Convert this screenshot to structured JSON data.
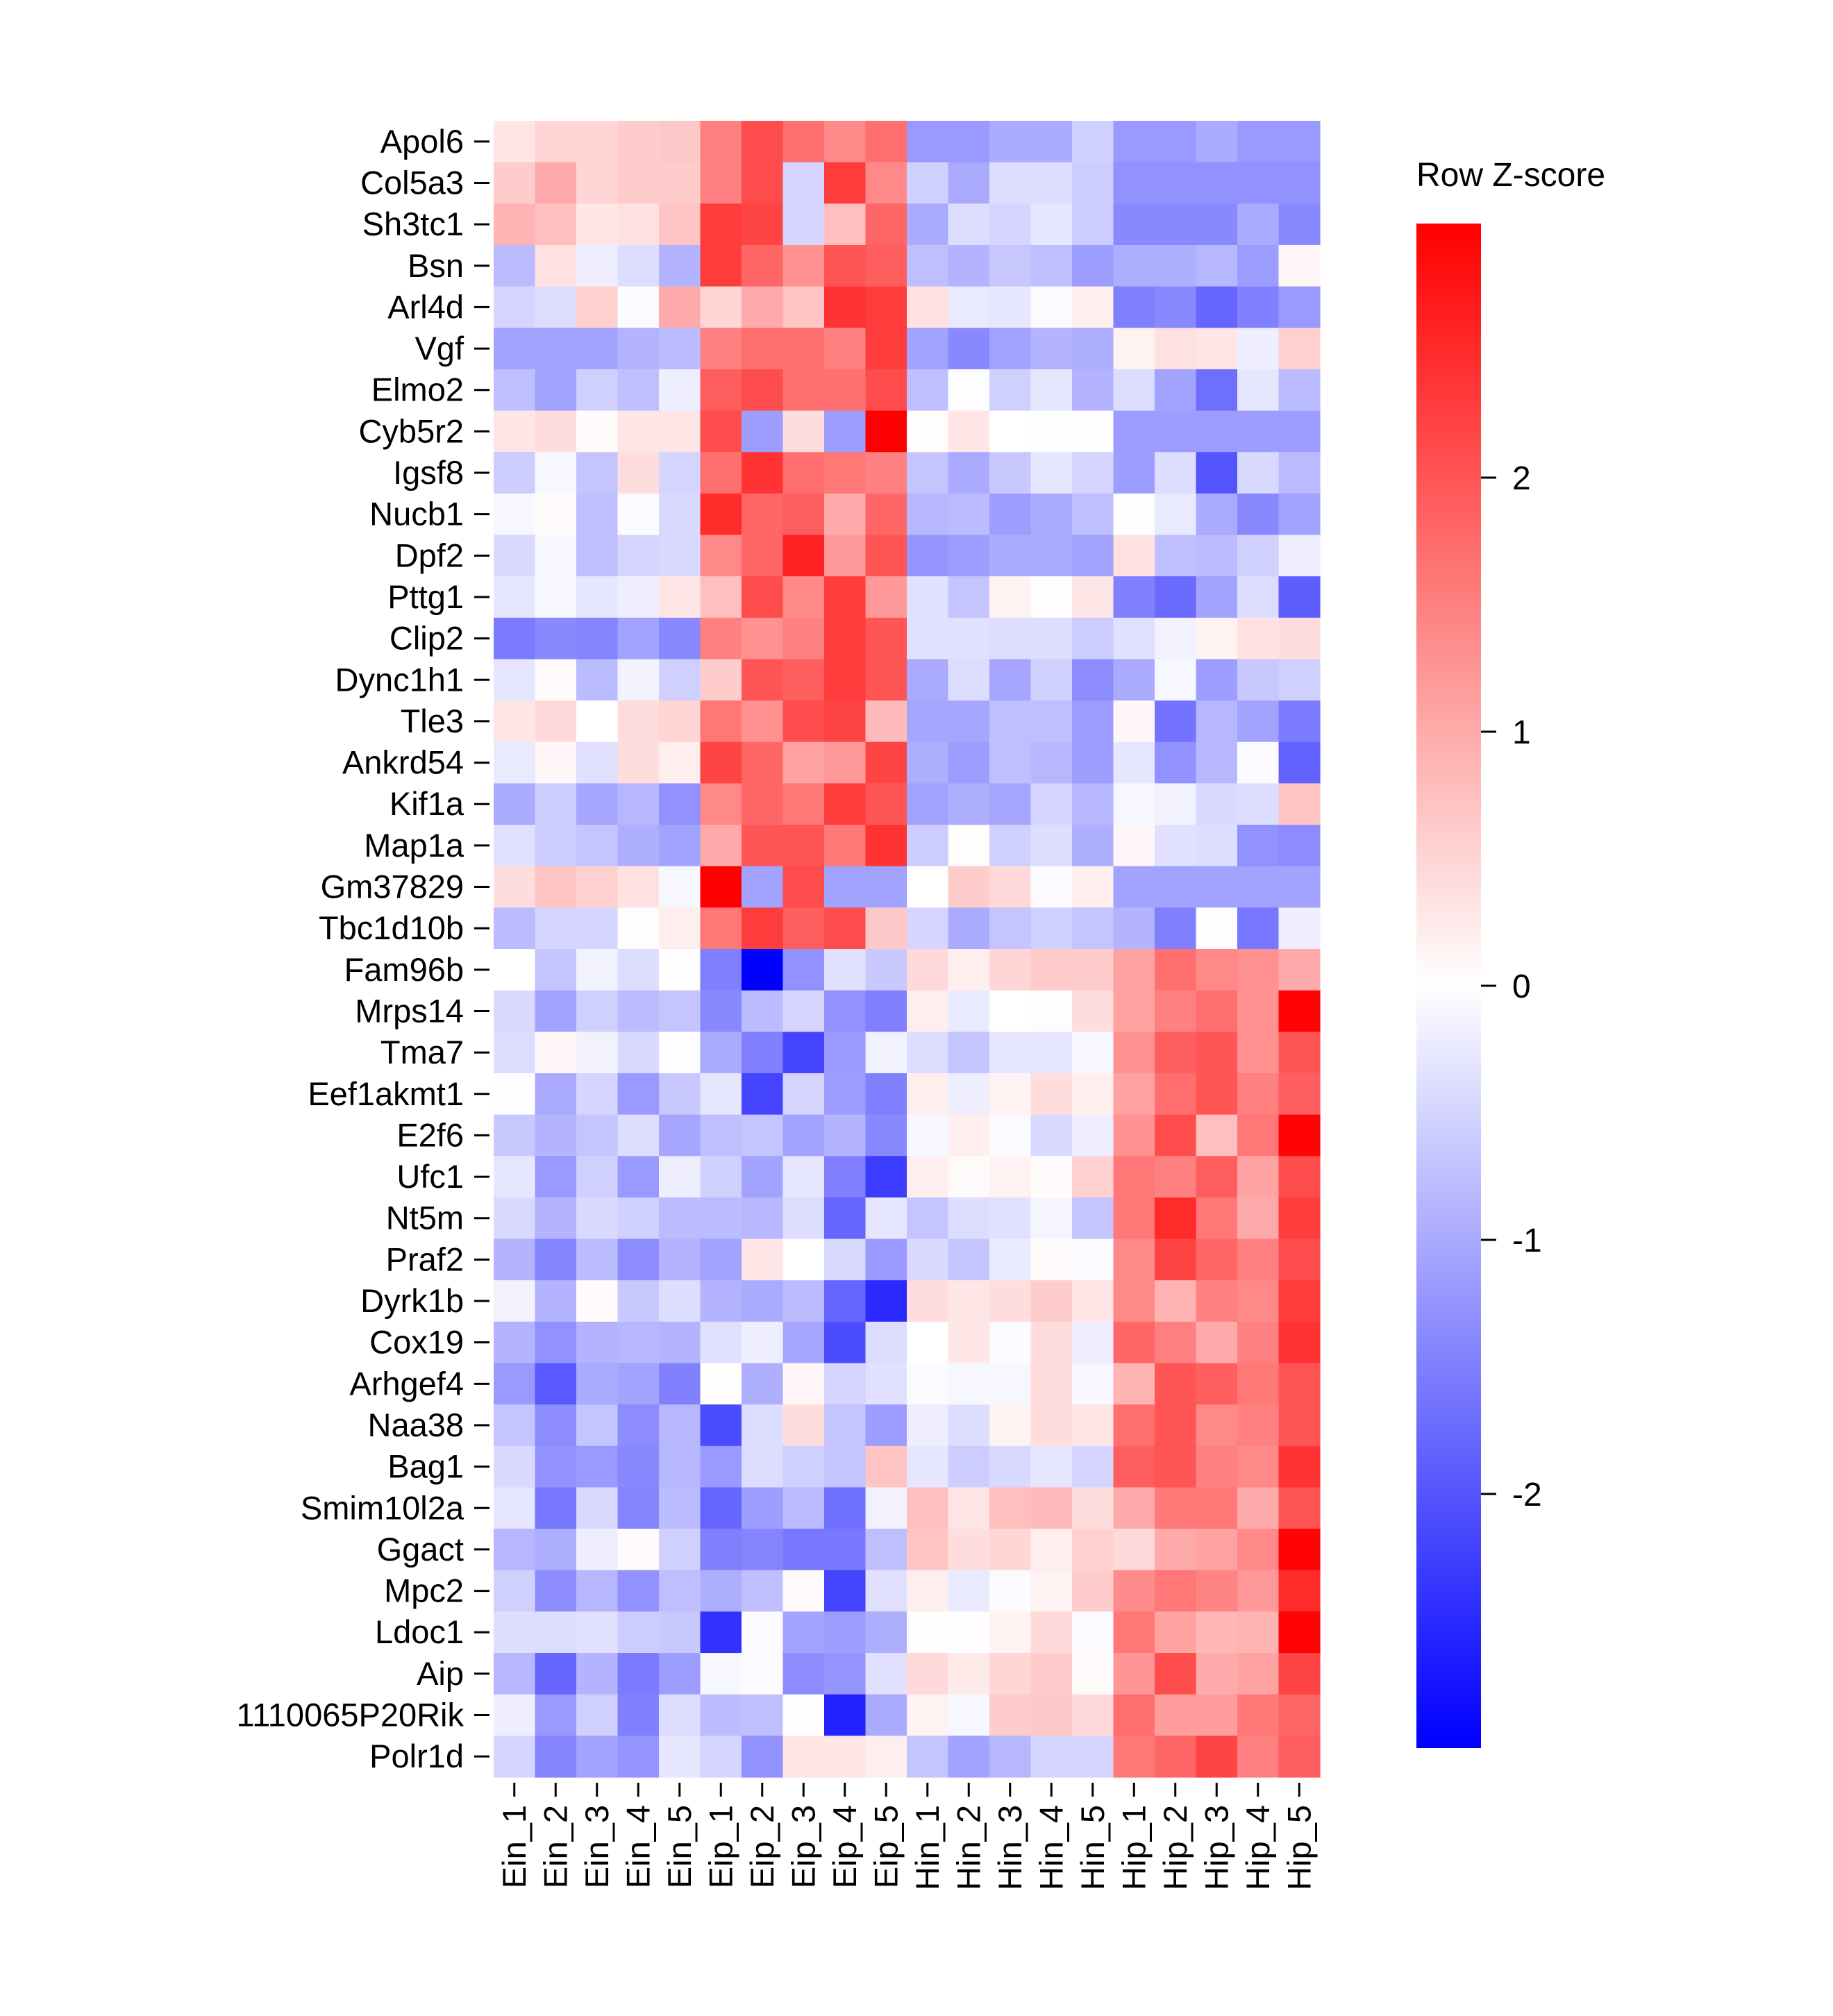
{
  "chart_data": {
    "type": "heatmap",
    "title": "",
    "xlabel": "",
    "ylabel": "",
    "colorscale": {
      "low": "#0000FF",
      "mid": "#FFFFFF",
      "high": "#FF0000",
      "range": [
        -3,
        3
      ]
    },
    "legend": {
      "title": "Row Z-score",
      "ticks": [
        2,
        1,
        0,
        -1,
        -2
      ],
      "tick_labels": [
        "2",
        "1",
        "0",
        "-1",
        "-2"
      ],
      "placement": "right"
    },
    "columns": [
      "Ein_1",
      "Ein_2",
      "Ein_3",
      "Ein_4",
      "Ein_5",
      "Eip_1",
      "Eip_2",
      "Eip_3",
      "Eip_4",
      "Eip_5",
      "Hin_1",
      "Hin_2",
      "Hin_3",
      "Hin_4",
      "Hin_5",
      "Hip_1",
      "Hip_2",
      "Hip_3",
      "Hip_4",
      "Hip_5"
    ],
    "rows": [
      "Apol6",
      "Col5a3",
      "Sh3tc1",
      "Bsn",
      "Arl4d",
      "Vgf",
      "Elmo2",
      "Cyb5r2",
      "Igsf8",
      "Nucb1",
      "Dpf2",
      "Pttg1",
      "Clip2",
      "Dync1h1",
      "Tle3",
      "Ankrd54",
      "Kif1a",
      "Map1a",
      "Gm37829",
      "Tbc1d10b",
      "Fam96b",
      "Mrps14",
      "Tma7",
      "Eef1akmt1",
      "E2f6",
      "Ufc1",
      "Nt5m",
      "Praf2",
      "Dyrk1b",
      "Cox19",
      "Arhgef4",
      "Naa38",
      "Bag1",
      "Smim10l2a",
      "Ggact",
      "Mpc2",
      "Ldoc1",
      "Aip",
      "1110065P20Rik",
      "Polr1d"
    ],
    "values": [
      [
        0.3,
        0.5,
        0.5,
        0.6,
        0.65,
        1.5,
        2.1,
        1.7,
        1.4,
        1.7,
        -1.2,
        -1.2,
        -1.0,
        -1.0,
        -0.55,
        -1.2,
        -1.2,
        -1.0,
        -1.2,
        -1.2
      ],
      [
        0.6,
        1.0,
        0.5,
        0.6,
        0.6,
        1.5,
        2.1,
        -0.5,
        2.3,
        1.4,
        -0.55,
        -1.0,
        -0.4,
        -0.4,
        -0.6,
        -1.3,
        -1.3,
        -1.3,
        -1.3,
        -1.3
      ],
      [
        0.9,
        0.75,
        0.3,
        0.35,
        0.7,
        2.3,
        2.2,
        -0.5,
        0.75,
        1.8,
        -1.0,
        -0.4,
        -0.5,
        -0.3,
        -0.6,
        -1.4,
        -1.4,
        -1.4,
        -1.0,
        -1.4
      ],
      [
        -0.8,
        0.35,
        -0.2,
        -0.4,
        -0.9,
        2.3,
        1.8,
        1.3,
        2.0,
        1.9,
        -0.75,
        -0.9,
        -0.65,
        -0.75,
        -1.15,
        -0.95,
        -0.95,
        -0.85,
        -1.15,
        0.1
      ],
      [
        -0.5,
        -0.4,
        0.55,
        -0.05,
        1.0,
        0.5,
        1.0,
        0.7,
        2.4,
        2.3,
        0.35,
        -0.25,
        -0.3,
        -0.05,
        0.2,
        -1.5,
        -1.4,
        -1.8,
        -1.5,
        -1.2
      ],
      [
        -1.1,
        -1.1,
        -1.1,
        -0.9,
        -0.8,
        1.5,
        1.7,
        1.7,
        1.5,
        2.3,
        -1.1,
        -1.4,
        -1.1,
        -0.9,
        -0.95,
        0.15,
        0.35,
        0.3,
        -0.2,
        0.55
      ],
      [
        -0.75,
        -1.1,
        -0.55,
        -0.75,
        -0.2,
        1.9,
        2.1,
        1.7,
        1.7,
        2.1,
        -0.75,
        -0.02,
        -0.55,
        -0.3,
        -0.9,
        -0.4,
        -1.1,
        -1.7,
        -0.3,
        -0.8
      ],
      [
        0.3,
        0.4,
        0.05,
        0.3,
        0.3,
        2.1,
        -1.15,
        0.4,
        -1.15,
        3.0,
        0.03,
        0.3,
        0,
        -0.02,
        0.02,
        -1.15,
        -1.15,
        -1.15,
        -1.15,
        -1.15
      ],
      [
        -0.6,
        -0.1,
        -0.7,
        0.4,
        -0.5,
        1.7,
        2.4,
        1.7,
        1.6,
        1.5,
        -0.7,
        -1.0,
        -0.65,
        -0.3,
        -0.5,
        -1.15,
        -0.4,
        -2.0,
        -0.45,
        -0.8
      ],
      [
        -0.1,
        0.05,
        -0.75,
        -0.05,
        -0.45,
        2.5,
        1.8,
        1.9,
        1.0,
        1.8,
        -0.85,
        -0.8,
        -1.15,
        -1.0,
        -0.75,
        0.02,
        -0.25,
        -1.0,
        -1.4,
        -1.1
      ],
      [
        -0.45,
        -0.1,
        -0.75,
        -0.5,
        -0.45,
        1.4,
        1.8,
        2.6,
        1.2,
        2.0,
        -1.25,
        -1.15,
        -1.0,
        -1.0,
        -1.1,
        0.35,
        -0.75,
        -0.8,
        -0.55,
        -0.2
      ],
      [
        -0.3,
        -0.1,
        -0.3,
        -0.2,
        0.3,
        0.75,
        2.1,
        1.4,
        2.3,
        1.2,
        -0.35,
        -0.7,
        0.15,
        0.02,
        0.3,
        -1.5,
        -1.75,
        -1.1,
        -0.4,
        -1.9
      ],
      [
        -1.55,
        -1.4,
        -1.45,
        -1.1,
        -1.4,
        1.5,
        1.3,
        1.5,
        2.3,
        2.0,
        -0.35,
        -0.35,
        -0.4,
        -0.4,
        -0.6,
        -0.35,
        -0.15,
        0.15,
        0.35,
        0.4
      ],
      [
        -0.3,
        0.05,
        -0.8,
        -0.15,
        -0.55,
        0.6,
        2.0,
        1.9,
        2.3,
        2.0,
        -1.0,
        -0.4,
        -1.05,
        -0.55,
        -1.35,
        -1.0,
        -0.1,
        -1.15,
        -0.65,
        -0.55
      ],
      [
        0.3,
        0.45,
        0,
        0.4,
        0.5,
        1.6,
        1.3,
        2.1,
        2.2,
        0.8,
        -1.05,
        -1.05,
        -0.75,
        -0.75,
        -1.15,
        0.1,
        -1.65,
        -0.85,
        -1.1,
        -1.55
      ],
      [
        -0.25,
        0.1,
        -0.35,
        0.4,
        0.2,
        2.2,
        1.8,
        1.1,
        1.2,
        2.2,
        -0.95,
        -1.15,
        -0.75,
        -0.85,
        -1.15,
        -0.3,
        -1.3,
        -0.85,
        -0.05,
        -1.85
      ],
      [
        -1.0,
        -0.6,
        -1.05,
        -0.85,
        -1.3,
        1.4,
        1.8,
        1.6,
        2.3,
        2.0,
        -1.1,
        -0.95,
        -1.05,
        -0.5,
        -0.85,
        -0.1,
        -0.15,
        -0.45,
        -0.4,
        0.7
      ],
      [
        -0.35,
        -0.6,
        -0.7,
        -0.95,
        -1.1,
        1.0,
        2.0,
        2.0,
        1.6,
        2.4,
        -0.6,
        0.03,
        -0.55,
        -0.4,
        -0.95,
        0.1,
        -0.35,
        -0.4,
        -1.3,
        -1.35
      ],
      [
        0.4,
        0.7,
        0.55,
        0.35,
        -0.1,
        3.0,
        -1.1,
        2.1,
        -1.1,
        -1.1,
        0,
        0.6,
        0.45,
        -0.05,
        0.2,
        -1.1,
        -1.1,
        -1.1,
        -1.1,
        -1.1
      ],
      [
        -0.8,
        -0.5,
        -0.5,
        0.03,
        0.2,
        1.6,
        2.3,
        1.9,
        2.1,
        0.65,
        -0.5,
        -1.0,
        -0.7,
        -0.55,
        -0.7,
        -0.9,
        -1.5,
        0.02,
        -1.6,
        -0.2
      ],
      [
        0,
        -0.7,
        -0.15,
        -0.4,
        0.02,
        -1.5,
        -3.0,
        -1.3,
        -0.35,
        -0.65,
        0.45,
        0.2,
        0.5,
        0.6,
        0.6,
        1.1,
        1.7,
        1.4,
        1.3,
        1.0
      ],
      [
        -0.45,
        -1.1,
        -0.55,
        -0.8,
        -0.7,
        -1.4,
        -0.8,
        -0.5,
        -1.3,
        -1.5,
        0.2,
        -0.25,
        0,
        -0.02,
        0.4,
        1.1,
        1.5,
        1.7,
        1.3,
        2.95
      ],
      [
        -0.4,
        0.1,
        -0.15,
        -0.45,
        -0.02,
        -1.0,
        -1.5,
        -2.2,
        -1.2,
        -0.15,
        -0.4,
        -0.7,
        -0.3,
        -0.3,
        -0.1,
        1.3,
        1.9,
        2.0,
        1.3,
        2.0
      ],
      [
        -0.02,
        -1.0,
        -0.5,
        -1.2,
        -0.65,
        -0.3,
        -2.2,
        -0.5,
        -1.15,
        -1.5,
        0.2,
        -0.2,
        0.15,
        0.4,
        0.2,
        1.1,
        1.7,
        2.0,
        1.5,
        1.9
      ],
      [
        -0.65,
        -0.9,
        -0.7,
        -0.4,
        -1.05,
        -0.75,
        -0.7,
        -1.1,
        -0.9,
        -1.4,
        -0.1,
        0.2,
        -0.05,
        -0.45,
        -0.2,
        1.3,
        2.1,
        0.75,
        1.6,
        2.95
      ],
      [
        -0.3,
        -1.2,
        -0.55,
        -1.2,
        -0.2,
        -0.55,
        -1.1,
        -0.3,
        -1.5,
        -2.3,
        0.2,
        0.05,
        0.15,
        0.05,
        0.55,
        1.6,
        1.5,
        1.9,
        1.1,
        2.1
      ],
      [
        -0.45,
        -0.9,
        -0.45,
        -0.55,
        -0.8,
        -0.8,
        -0.85,
        -0.4,
        -1.8,
        -0.3,
        -0.7,
        -0.4,
        -0.35,
        -0.12,
        -0.7,
        1.6,
        2.5,
        1.6,
        1.0,
        2.3
      ],
      [
        -0.9,
        -1.45,
        -0.8,
        -1.35,
        -0.9,
        -1.1,
        0.3,
        0,
        -0.45,
        -1.2,
        -0.45,
        -0.7,
        -0.25,
        0.05,
        -0.05,
        1.4,
        2.2,
        1.8,
        1.5,
        2.1
      ],
      [
        -0.15,
        -0.9,
        0.05,
        -0.65,
        -0.4,
        -0.9,
        -1.0,
        -0.8,
        -1.8,
        -2.5,
        0.4,
        0.3,
        0.4,
        0.6,
        0.3,
        1.4,
        0.9,
        1.5,
        1.4,
        2.3
      ],
      [
        -0.9,
        -1.3,
        -0.9,
        -0.85,
        -0.9,
        -0.35,
        -0.2,
        -1.05,
        -2.1,
        -0.4,
        0,
        0.3,
        -0.05,
        0.4,
        -0.2,
        1.8,
        1.5,
        1.0,
        1.5,
        2.4
      ],
      [
        -1.2,
        -1.95,
        -1.0,
        -1.1,
        -1.5,
        0.03,
        -0.95,
        0.1,
        -0.5,
        -0.35,
        -0.05,
        -0.1,
        -0.1,
        0.4,
        -0.1,
        0.9,
        2.0,
        1.9,
        1.6,
        2.0
      ],
      [
        -0.7,
        -1.35,
        -0.7,
        -1.35,
        -0.85,
        -2.1,
        -0.4,
        0.4,
        -0.7,
        -1.15,
        -0.2,
        -0.4,
        0.15,
        0.4,
        0.3,
        1.7,
        2.0,
        1.4,
        1.5,
        2.0
      ],
      [
        -0.45,
        -1.3,
        -1.2,
        -1.4,
        -0.85,
        -1.2,
        -0.4,
        -0.55,
        -0.7,
        0.7,
        -0.3,
        -0.6,
        -0.45,
        -0.3,
        -0.5,
        1.9,
        2.0,
        1.5,
        1.4,
        2.4
      ],
      [
        -0.3,
        -1.6,
        -0.45,
        -1.45,
        -0.8,
        -1.8,
        -1.15,
        -0.8,
        -1.7,
        -0.15,
        0.75,
        0.3,
        0.75,
        0.8,
        0.4,
        1.0,
        1.6,
        1.6,
        1.0,
        2.0
      ],
      [
        -0.85,
        -0.95,
        -0.2,
        0.05,
        -0.55,
        -1.5,
        -1.45,
        -1.6,
        -1.6,
        -0.75,
        0.7,
        0.4,
        0.5,
        0.2,
        0.55,
        0.45,
        1.0,
        1.1,
        1.4,
        2.95
      ],
      [
        -0.55,
        -1.35,
        -0.85,
        -1.3,
        -0.75,
        -0.95,
        -0.75,
        0.05,
        -2.2,
        -0.35,
        0.2,
        -0.25,
        -0.05,
        0.15,
        0.6,
        1.35,
        1.6,
        1.45,
        1.2,
        2.5
      ],
      [
        -0.4,
        -0.4,
        -0.35,
        -0.6,
        -0.65,
        -2.4,
        -0.05,
        -1.1,
        -1.15,
        -0.95,
        0.02,
        0.02,
        0.15,
        0.45,
        -0.05,
        1.6,
        1.1,
        0.85,
        0.9,
        2.95
      ],
      [
        -0.85,
        -1.8,
        -0.9,
        -1.55,
        -1.15,
        -0.1,
        -0.05,
        -1.35,
        -1.25,
        -0.35,
        0.45,
        0.25,
        0.5,
        0.6,
        0.05,
        1.25,
        2.1,
        1.0,
        1.1,
        2.2
      ],
      [
        -0.2,
        -1.2,
        -0.55,
        -1.5,
        -0.4,
        -0.8,
        -0.75,
        0.02,
        -2.6,
        -1.0,
        0.15,
        -0.1,
        0.6,
        0.65,
        0.45,
        1.7,
        1.15,
        1.15,
        1.6,
        1.8
      ],
      [
        -0.5,
        -1.45,
        -1.1,
        -1.25,
        -0.3,
        -0.5,
        -1.3,
        0.3,
        0.3,
        0.2,
        -0.7,
        -1.1,
        -0.85,
        -0.5,
        -0.5,
        1.6,
        1.8,
        2.2,
        1.5,
        1.9
      ]
    ]
  }
}
